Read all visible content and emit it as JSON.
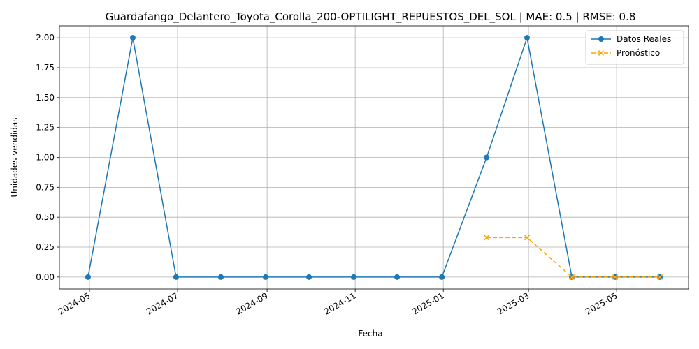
{
  "chart_data": {
    "type": "line",
    "title": "Guardafango_Delantero_Toyota_Corolla_200-OPTILIGHT_REPUESTOS_DEL_SOL | MAE: 0.5 | RMSE: 0.8",
    "xlabel": "Fecha",
    "ylabel": "Unidades vendidas",
    "ylim": [
      -0.1,
      2.1
    ],
    "grid": true,
    "legend_position": "top-right",
    "x_ticks": [
      "2024-05-01",
      "2024-07-01",
      "2024-09-01",
      "2024-11-01",
      "2025-01-01",
      "2025-03-01",
      "2025-05-01"
    ],
    "x_tick_labels": [
      "2024-05",
      "2024-07",
      "2024-09",
      "2024-11",
      "2025-01",
      "2025-03",
      "2025-05"
    ],
    "y_ticks": [
      0.0,
      0.25,
      0.5,
      0.75,
      1.0,
      1.25,
      1.5,
      1.75,
      2.0
    ],
    "y_tick_labels": [
      "0.00",
      "0.25",
      "0.50",
      "0.75",
      "1.00",
      "1.25",
      "1.50",
      "1.75",
      "2.00"
    ],
    "series": [
      {
        "name": "Datos Reales",
        "color": "#1f77b4",
        "style": "solid",
        "marker": "circle",
        "x": [
          "2024-04-30",
          "2024-05-31",
          "2024-06-30",
          "2024-07-31",
          "2024-08-31",
          "2024-09-30",
          "2024-10-31",
          "2024-11-30",
          "2024-12-31",
          "2025-01-31",
          "2025-02-28",
          "2025-03-31",
          "2025-04-30",
          "2025-05-31"
        ],
        "values": [
          0,
          2,
          0,
          0,
          0,
          0,
          0,
          0,
          0,
          1,
          2,
          0,
          0,
          0
        ]
      },
      {
        "name": "Pronóstico",
        "color": "#ffa500",
        "style": "dashed",
        "marker": "x",
        "x": [
          "2025-01-31",
          "2025-02-28",
          "2025-03-31",
          "2025-04-30",
          "2025-05-31"
        ],
        "values": [
          0.33,
          0.33,
          0,
          0,
          0
        ]
      }
    ]
  }
}
